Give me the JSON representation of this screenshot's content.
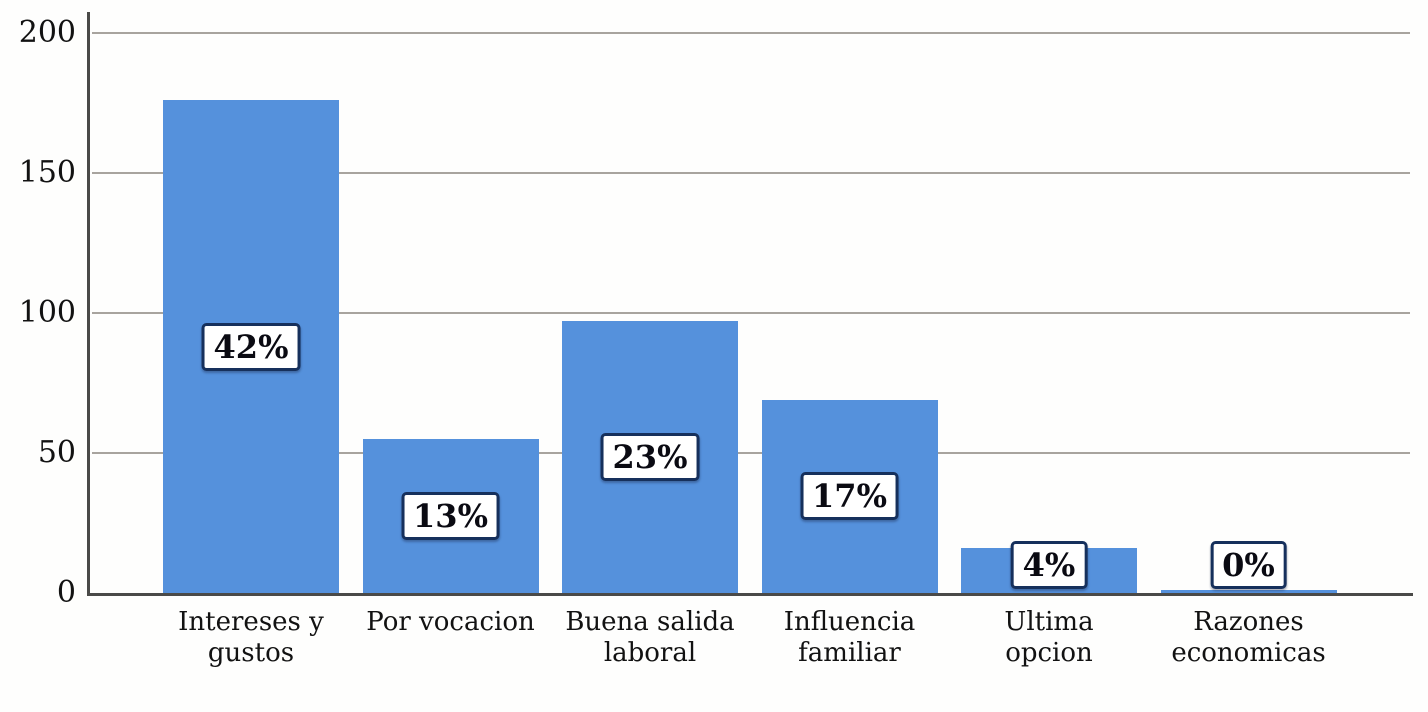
{
  "chart_data": {
    "type": "bar",
    "title": "",
    "xlabel": "",
    "ylabel": "",
    "categories": [
      "Intereses y gustos",
      "Por vocacion",
      "Buena salida laboral",
      "Influencia familiar",
      "Ultima opcion",
      "Razones economicas"
    ],
    "category_lines": [
      [
        "Intereses y",
        "gustos"
      ],
      [
        "Por vocacion"
      ],
      [
        "Buena salida",
        "laboral"
      ],
      [
        "Influencia",
        "familiar"
      ],
      [
        "Ultima",
        "opcion"
      ],
      [
        "Razones",
        "economicas"
      ]
    ],
    "values": [
      176,
      55,
      97,
      69,
      16,
      1
    ],
    "percent_labels": [
      "42%",
      "13%",
      "23%",
      "17%",
      "4%",
      "0%"
    ],
    "ylim": [
      0,
      200
    ],
    "yticks": [
      0,
      50,
      100,
      150,
      200
    ],
    "grid": true,
    "legend_position": "none",
    "colors": {
      "bar": "#5591dc",
      "axis": "#4a4a48",
      "gridline": "#a8a49e",
      "text": "#121212",
      "label_box_bg": "#ffffff",
      "label_box_border": "#16305c",
      "label_box_text": "#0a0a12"
    }
  }
}
